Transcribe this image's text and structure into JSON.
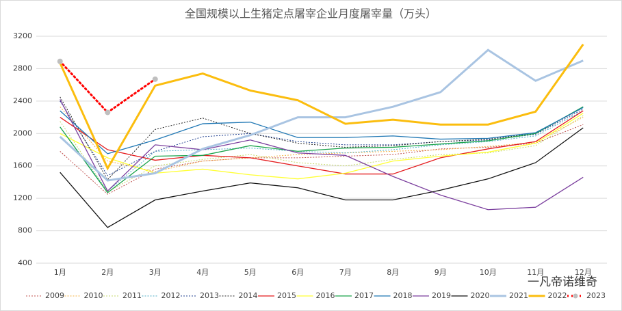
{
  "chart_data": {
    "type": "line",
    "title": "全国规模以上生猪定点屠宰企业月度屠宰量（万头）",
    "categories": [
      "1月",
      "2月",
      "3月",
      "4月",
      "5月",
      "6月",
      "7月",
      "8月",
      "9月",
      "10月",
      "11月",
      "12月"
    ],
    "ylim": [
      400,
      3200
    ],
    "yticks": [
      400,
      800,
      1200,
      1600,
      2000,
      2400,
      2800,
      3200
    ],
    "grid": true,
    "legend": "bottom",
    "watermark": "一凡帝诺维奇",
    "series": [
      {
        "name": "2009",
        "color": "#c0504d",
        "dash": "dotted",
        "width": 1,
        "values": [
          1780,
          1250,
          1560,
          1660,
          1700,
          1700,
          1720,
          1740,
          1810,
          1830,
          1880,
          2110
        ]
      },
      {
        "name": "2010",
        "color": "#f5b040",
        "dash": "dotted",
        "width": 1,
        "values": [
          2330,
          1660,
          1530,
          1660,
          1700,
          1740,
          1760,
          1780,
          1800,
          1840,
          1890,
          2200
        ]
      },
      {
        "name": "2011",
        "color": "#c6d96b",
        "dash": "dotted",
        "width": 1,
        "values": [
          2150,
          1280,
          1600,
          1680,
          1740,
          1640,
          1600,
          1680,
          1740,
          1760,
          1850,
          2220
        ]
      },
      {
        "name": "2012",
        "color": "#4bacc6",
        "dash": "dotted",
        "width": 1,
        "values": [
          2080,
          1290,
          1780,
          1800,
          1820,
          1780,
          1760,
          1800,
          1860,
          1900,
          1970,
          2280
        ]
      },
      {
        "name": "2013",
        "color": "#1f3f8f",
        "dash": "dotted",
        "width": 1,
        "values": [
          2400,
          1480,
          1780,
          1960,
          2000,
          1900,
          1860,
          1860,
          1900,
          1920,
          1990,
          2300
        ]
      },
      {
        "name": "2014",
        "color": "#222222",
        "dash": "dotted",
        "width": 1,
        "values": [
          2450,
          1430,
          2050,
          2190,
          2000,
          1880,
          1830,
          1850,
          1900,
          1930,
          2000,
          2320
        ]
      },
      {
        "name": "2015",
        "color": "#e41a1c",
        "dash": "solid",
        "width": 1.3,
        "values": [
          2200,
          1800,
          1670,
          1730,
          1700,
          1600,
          1500,
          1500,
          1700,
          1810,
          1900,
          2280
        ]
      },
      {
        "name": "2016",
        "color": "#ffff33",
        "dash": "solid",
        "width": 1.3,
        "values": [
          2000,
          1700,
          1510,
          1560,
          1490,
          1440,
          1510,
          1660,
          1720,
          1770,
          1880,
          2250
        ]
      },
      {
        "name": "2017",
        "color": "#1aa34a",
        "dash": "solid",
        "width": 1.3,
        "values": [
          2080,
          1270,
          1720,
          1730,
          1850,
          1780,
          1820,
          1830,
          1870,
          1910,
          2000,
          2330
        ]
      },
      {
        "name": "2018",
        "color": "#1f77b4",
        "dash": "solid",
        "width": 1.3,
        "values": [
          2280,
          1750,
          1920,
          2120,
          2140,
          1950,
          1950,
          1970,
          1930,
          1940,
          2010,
          2320
        ]
      },
      {
        "name": "2019",
        "color": "#7b3f9e",
        "dash": "solid",
        "width": 1.3,
        "values": [
          2420,
          1290,
          1860,
          1800,
          1920,
          1760,
          1730,
          1470,
          1240,
          1060,
          1090,
          1460
        ]
      },
      {
        "name": "2020",
        "color": "#111111",
        "dash": "solid",
        "width": 1.3,
        "values": [
          1520,
          840,
          1180,
          1290,
          1390,
          1330,
          1180,
          1180,
          1300,
          1440,
          1640,
          2070
        ]
      },
      {
        "name": "2021",
        "color": "#a9c4e2",
        "dash": "solid",
        "width": 3,
        "values": [
          1960,
          1420,
          1510,
          1810,
          1980,
          2200,
          2200,
          2330,
          2510,
          3030,
          2650,
          2900
        ]
      },
      {
        "name": "2022",
        "color": "#fbbd0e",
        "dash": "solid",
        "width": 3,
        "values": [
          2870,
          1570,
          2590,
          2740,
          2530,
          2410,
          2120,
          2170,
          2110,
          2110,
          2270,
          3100
        ]
      },
      {
        "name": "2023",
        "color": "#ff0000",
        "dash": "dotted",
        "width": 3,
        "marker": "#bfbfbf",
        "values": [
          2890,
          2260,
          2670,
          null,
          null,
          null,
          null,
          null,
          null,
          null,
          null,
          null
        ]
      }
    ]
  }
}
